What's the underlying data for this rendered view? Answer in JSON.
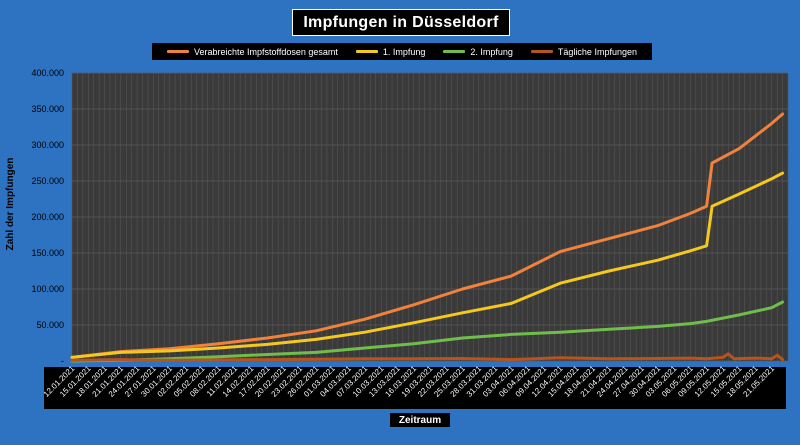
{
  "colors": {
    "background": "#2d73c2",
    "plot_bg": "#3a3a3a",
    "grid": "#5a5a5a",
    "total": "#f0823c",
    "first": "#f5c81e",
    "second": "#6fbd4a",
    "daily": "#b4541e"
  },
  "chart_data": {
    "type": "line",
    "title": "Impfungen in Düsseldorf",
    "xlabel": "Zeitraum",
    "ylabel": "Zahl der Impfungen",
    "ylim": [
      0,
      400000
    ],
    "yticks": [
      0,
      50000,
      100000,
      150000,
      200000,
      250000,
      300000,
      350000,
      400000
    ],
    "ytick_labels": [
      "-",
      "50.000",
      "100.000",
      "150.000",
      "200.000",
      "250.000",
      "300.000",
      "350.000",
      "400.000"
    ],
    "x_tick_labels": [
      "12.01.2021",
      "15.01.2021",
      "18.01.2021",
      "21.01.2021",
      "24.01.2021",
      "27.01.2021",
      "30.01.2021",
      "02.02.2021",
      "05.02.2021",
      "08.02.2021",
      "11.02.2021",
      "14.02.2021",
      "17.02.2021",
      "20.02.2021",
      "23.02.2021",
      "26.02.2021",
      "01.03.2021",
      "04.03.2021",
      "07.03.2021",
      "10.03.2021",
      "13.03.2021",
      "16.03.2021",
      "19.03.2021",
      "22.03.2021",
      "25.03.2021",
      "28.03.2021",
      "31.03.2021",
      "03.04.2021",
      "06.04.2021",
      "09.04.2021",
      "12.04.2021",
      "15.04.2021",
      "18.04.2021",
      "21.04.2021",
      "24.04.2021",
      "27.04.2021",
      "30.04.2021",
      "03.05.2021",
      "06.05.2021",
      "09.05.2021",
      "12.05.2021",
      "15.05.2021",
      "18.05.2021",
      "21.05.2021"
    ],
    "grid": true,
    "legend_position": "top",
    "series": [
      {
        "name": "Verabreichte Impfstoffdosen gesamt",
        "color_key": "total",
        "points": [
          [
            "12.01.2021",
            5000
          ],
          [
            "21.01.2021",
            13000
          ],
          [
            "30.01.2021",
            17000
          ],
          [
            "08.02.2021",
            24000
          ],
          [
            "17.02.2021",
            32000
          ],
          [
            "26.02.2021",
            42000
          ],
          [
            "07.03.2021",
            58000
          ],
          [
            "16.03.2021",
            78000
          ],
          [
            "25.03.2021",
            100000
          ],
          [
            "03.04.2021",
            118000
          ],
          [
            "12.04.2021",
            152000
          ],
          [
            "21.04.2021",
            170000
          ],
          [
            "30.04.2021",
            188000
          ],
          [
            "06.05.2021",
            205000
          ],
          [
            "09.05.2021",
            215000
          ],
          [
            "10.05.2021",
            275000
          ],
          [
            "15.05.2021",
            295000
          ],
          [
            "21.05.2021",
            330000
          ],
          [
            "23.05.2021",
            343000
          ]
        ]
      },
      {
        "name": "1. Impfung",
        "color_key": "first",
        "points": [
          [
            "12.01.2021",
            5000
          ],
          [
            "21.01.2021",
            12000
          ],
          [
            "30.01.2021",
            14000
          ],
          [
            "08.02.2021",
            18000
          ],
          [
            "17.02.2021",
            23000
          ],
          [
            "26.02.2021",
            30000
          ],
          [
            "07.03.2021",
            40000
          ],
          [
            "16.03.2021",
            53000
          ],
          [
            "25.03.2021",
            67000
          ],
          [
            "03.04.2021",
            80000
          ],
          [
            "12.04.2021",
            108000
          ],
          [
            "21.04.2021",
            125000
          ],
          [
            "30.04.2021",
            140000
          ],
          [
            "06.05.2021",
            153000
          ],
          [
            "09.05.2021",
            160000
          ],
          [
            "10.05.2021",
            215000
          ],
          [
            "15.05.2021",
            232000
          ],
          [
            "21.05.2021",
            253000
          ],
          [
            "23.05.2021",
            261000
          ]
        ]
      },
      {
        "name": "2. Impfung",
        "color_key": "second",
        "points": [
          [
            "12.01.2021",
            0
          ],
          [
            "21.01.2021",
            1000
          ],
          [
            "30.01.2021",
            3000
          ],
          [
            "08.02.2021",
            6000
          ],
          [
            "17.02.2021",
            9000
          ],
          [
            "26.02.2021",
            12000
          ],
          [
            "07.03.2021",
            18000
          ],
          [
            "16.03.2021",
            24000
          ],
          [
            "25.03.2021",
            32000
          ],
          [
            "03.04.2021",
            37000
          ],
          [
            "12.04.2021",
            40000
          ],
          [
            "21.04.2021",
            44000
          ],
          [
            "30.04.2021",
            48000
          ],
          [
            "06.05.2021",
            52000
          ],
          [
            "09.05.2021",
            55000
          ],
          [
            "15.05.2021",
            64000
          ],
          [
            "21.05.2021",
            74000
          ],
          [
            "23.05.2021",
            82000
          ]
        ]
      },
      {
        "name": "Tägliche Impfungen",
        "color_key": "daily",
        "points": [
          [
            "12.01.2021",
            1000
          ],
          [
            "21.01.2021",
            2000
          ],
          [
            "30.01.2021",
            1000
          ],
          [
            "08.02.2021",
            1500
          ],
          [
            "17.02.2021",
            2000
          ],
          [
            "26.02.2021",
            2500
          ],
          [
            "07.03.2021",
            3000
          ],
          [
            "16.03.2021",
            3000
          ],
          [
            "25.03.2021",
            3500
          ],
          [
            "03.04.2021",
            2000
          ],
          [
            "12.04.2021",
            4500
          ],
          [
            "21.04.2021",
            3000
          ],
          [
            "30.04.2021",
            3500
          ],
          [
            "06.05.2021",
            4000
          ],
          [
            "09.05.2021",
            3000
          ],
          [
            "12.05.2021",
            5000
          ],
          [
            "13.05.2021",
            10000
          ],
          [
            "14.05.2021",
            3000
          ],
          [
            "18.05.2021",
            4000
          ],
          [
            "21.05.2021",
            3000
          ],
          [
            "22.05.2021",
            8000
          ],
          [
            "23.05.2021",
            2000
          ]
        ]
      }
    ]
  }
}
